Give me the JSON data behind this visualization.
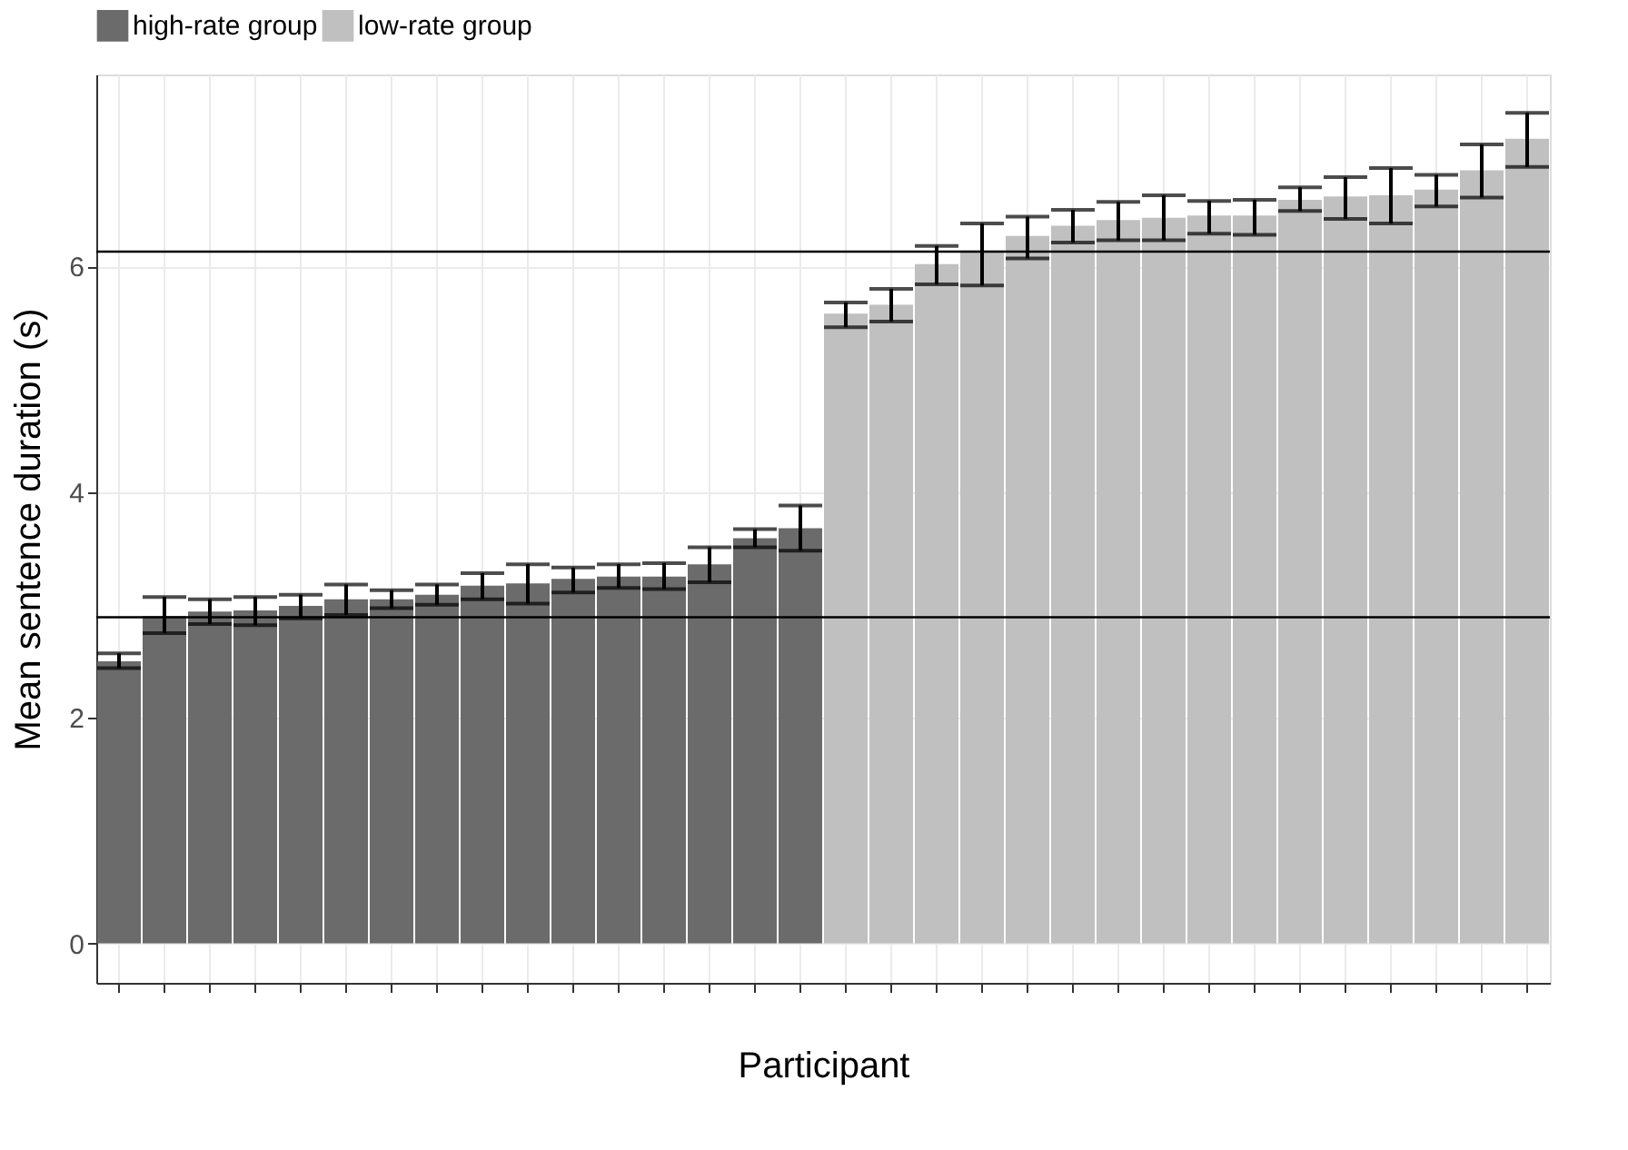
{
  "chart_data": {
    "type": "bar",
    "ylabel": "Mean sentence duration (s)",
    "xlabel": "Participant",
    "categories": [
      null,
      null,
      null,
      null,
      null,
      null,
      null,
      null,
      null,
      null,
      null,
      null,
      null,
      null,
      null,
      null,
      null,
      null,
      null,
      null,
      null,
      null,
      null,
      null,
      null,
      null,
      null,
      null,
      null,
      null,
      null,
      null
    ],
    "series": [
      {
        "name": "high-rate group",
        "color": "#6b6b6b",
        "values": [
          2.5,
          2.9,
          2.94,
          2.95,
          2.99,
          3.05,
          3.05,
          3.09,
          3.17,
          3.19,
          3.23,
          3.25,
          3.25,
          3.36,
          3.59,
          3.68,
          null,
          null,
          null,
          null,
          null,
          null,
          null,
          null,
          null,
          null,
          null,
          null,
          null,
          null,
          null,
          null
        ],
        "errors": [
          [
            2.44,
            2.57
          ],
          [
            2.75,
            3.07
          ],
          [
            2.83,
            3.05
          ],
          [
            2.82,
            3.07
          ],
          [
            2.88,
            3.09
          ],
          [
            2.91,
            3.18
          ],
          [
            2.97,
            3.13
          ],
          [
            3.0,
            3.18
          ],
          [
            3.05,
            3.28
          ],
          [
            3.01,
            3.36
          ],
          [
            3.11,
            3.33
          ],
          [
            3.15,
            3.36
          ],
          [
            3.14,
            3.37
          ],
          [
            3.2,
            3.51
          ],
          [
            3.51,
            3.67
          ],
          [
            3.48,
            3.88
          ],
          null,
          null,
          null,
          null,
          null,
          null,
          null,
          null,
          null,
          null,
          null,
          null,
          null,
          null,
          null,
          null
        ]
      },
      {
        "name": "low-rate group",
        "color": "#c0c0c0",
        "values": [
          null,
          null,
          null,
          null,
          null,
          null,
          null,
          null,
          null,
          null,
          null,
          null,
          null,
          null,
          null,
          null,
          5.58,
          5.66,
          6.02,
          6.14,
          6.27,
          6.36,
          6.41,
          6.43,
          6.45,
          6.45,
          6.59,
          6.62,
          6.63,
          6.68,
          6.85,
          7.13
        ],
        "errors": [
          null,
          null,
          null,
          null,
          null,
          null,
          null,
          null,
          null,
          null,
          null,
          null,
          null,
          null,
          null,
          null,
          [
            5.46,
            5.68
          ],
          [
            5.51,
            5.8
          ],
          [
            5.84,
            6.18
          ],
          [
            5.83,
            6.38
          ],
          [
            6.07,
            6.44
          ],
          [
            6.21,
            6.5
          ],
          [
            6.23,
            6.57
          ],
          [
            6.23,
            6.63
          ],
          [
            6.29,
            6.58
          ],
          [
            6.28,
            6.59
          ],
          [
            6.49,
            6.7
          ],
          [
            6.42,
            6.79
          ],
          [
            6.38,
            6.87
          ],
          [
            6.53,
            6.81
          ],
          [
            6.61,
            7.08
          ],
          [
            6.88,
            7.36
          ]
        ]
      }
    ],
    "ref_lines": [
      {
        "axis": "y",
        "value": 6.13,
        "color": "#000000"
      },
      {
        "axis": "y",
        "value": 2.89,
        "color": "#000000"
      }
    ],
    "ylim": [
      -0.35,
      7.7
    ],
    "yticks": [
      0,
      2,
      4,
      6
    ],
    "grid": true,
    "legend": "top",
    "tick_labels": "y"
  }
}
